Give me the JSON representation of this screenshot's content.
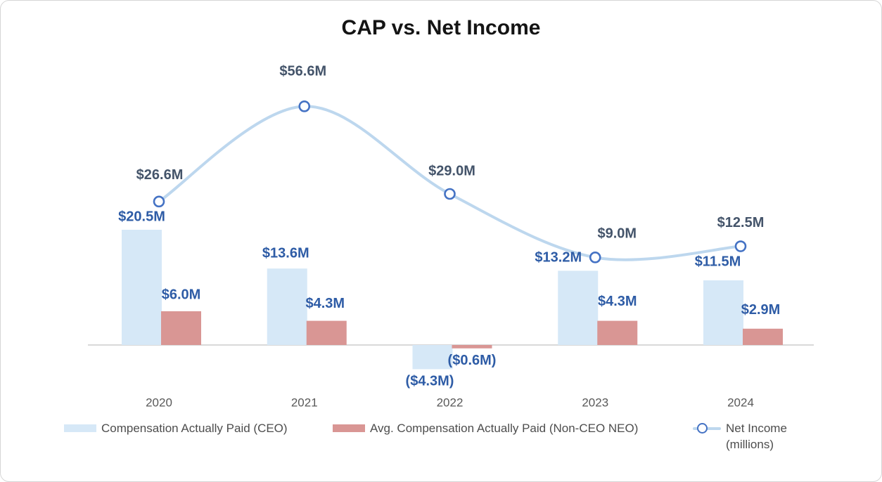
{
  "chart_data": {
    "type": "combo-bar-line",
    "title": "CAP vs. Net Income",
    "categories": [
      "2020",
      "2021",
      "2022",
      "2023",
      "2024"
    ],
    "series": [
      {
        "name": "Compensation Actually Paid (CEO)",
        "type": "bar",
        "color": "#D6E8F7",
        "values": [
          20.5,
          13.6,
          -4.3,
          13.2,
          11.5
        ],
        "labels": [
          "$20.5M",
          "$13.6M",
          "($4.3M)",
          "$13.2M",
          "$11.5M"
        ],
        "label_color": "#2E5CA6"
      },
      {
        "name": "Avg. Compensation Actually Paid (Non-CEO NEO)",
        "type": "bar",
        "color": "#D99694",
        "values": [
          6.0,
          4.3,
          -0.6,
          4.3,
          2.9
        ],
        "labels": [
          "$6.0M",
          "$4.3M",
          "($0.6M)",
          "$4.3M",
          "$2.9M"
        ],
        "label_color": "#2E5CA6"
      },
      {
        "name": "Net Income (millions)",
        "type": "line",
        "color": "#BDD7EE",
        "marker_stroke": "#4472C4",
        "marker_fill": "#FDFEFF",
        "values": [
          26.6,
          56.6,
          29.0,
          9.0,
          12.5
        ],
        "labels": [
          "$26.6M",
          "$56.6M",
          "$29.0M",
          "$9.0M",
          "$12.5M"
        ],
        "label_color": "#44546A"
      }
    ],
    "axis": {
      "baseline_color": "#D9D9D9",
      "tick_label_color": "#595959"
    },
    "legend_position": "bottom",
    "grid": false
  }
}
